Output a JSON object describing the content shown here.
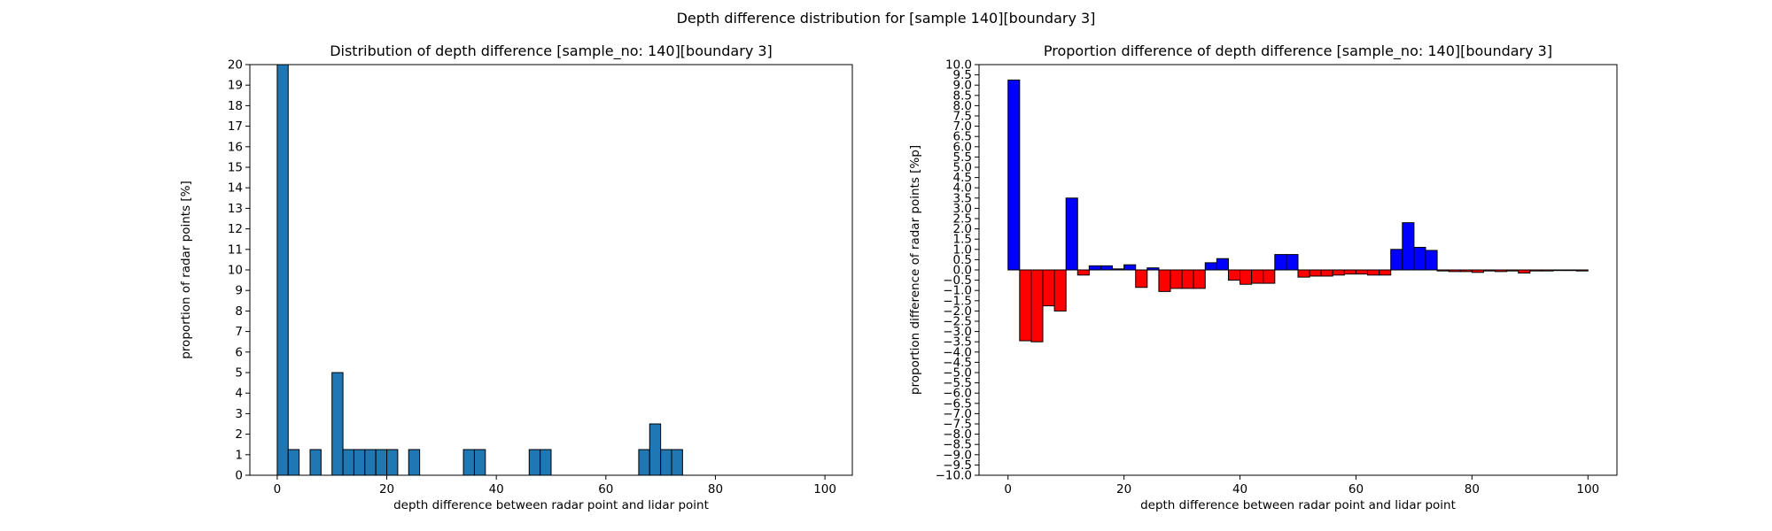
{
  "figure": {
    "suptitle": "Depth difference distribution for [sample 140][boundary 3]"
  },
  "chart_data": [
    {
      "type": "bar",
      "title": "Distribution of depth difference [sample_no: 140][boundary 3]",
      "xlabel": "depth difference between radar point and lidar point",
      "ylabel": "proportion of radar points [%]",
      "xlim": [
        -5,
        105
      ],
      "ylim": [
        0,
        20
      ],
      "xticks": [
        0,
        20,
        40,
        60,
        80,
        100
      ],
      "yticks": [
        0,
        1,
        2,
        3,
        4,
        5,
        6,
        7,
        8,
        9,
        10,
        11,
        12,
        13,
        14,
        15,
        16,
        17,
        18,
        19,
        20
      ],
      "bin_width": 2,
      "color": "#1f77b4",
      "bins": [
        {
          "x": 0,
          "value": 20.0
        },
        {
          "x": 2,
          "value": 1.25
        },
        {
          "x": 6,
          "value": 1.25
        },
        {
          "x": 10,
          "value": 5.0
        },
        {
          "x": 12,
          "value": 1.25
        },
        {
          "x": 14,
          "value": 1.25
        },
        {
          "x": 16,
          "value": 1.25
        },
        {
          "x": 18,
          "value": 1.25
        },
        {
          "x": 20,
          "value": 1.25
        },
        {
          "x": 24,
          "value": 1.25
        },
        {
          "x": 34,
          "value": 1.25
        },
        {
          "x": 36,
          "value": 1.25
        },
        {
          "x": 46,
          "value": 1.25
        },
        {
          "x": 48,
          "value": 1.25
        },
        {
          "x": 66,
          "value": 1.25
        },
        {
          "x": 68,
          "value": 2.5
        },
        {
          "x": 70,
          "value": 1.25
        },
        {
          "x": 72,
          "value": 1.25
        }
      ]
    },
    {
      "type": "bar",
      "title": "Proportion difference of depth difference [sample_no: 140][boundary 3]",
      "xlabel": "depth difference between radar point and lidar point",
      "ylabel": "proportion difference of radar points [%p]",
      "xlim": [
        -5,
        105
      ],
      "ylim": [
        -10,
        10
      ],
      "xticks": [
        0,
        20,
        40,
        60,
        80,
        100
      ],
      "yticks": [
        -10.0,
        -9.5,
        -9.0,
        -8.5,
        -8.0,
        -7.5,
        -7.0,
        -6.5,
        -6.0,
        -5.5,
        -5.0,
        -4.5,
        -4.0,
        -3.5,
        -3.0,
        -2.5,
        -2.0,
        -1.5,
        -1.0,
        -0.5,
        0.0,
        0.5,
        1.0,
        1.5,
        2.0,
        2.5,
        3.0,
        3.5,
        4.0,
        4.5,
        5.0,
        5.5,
        6.0,
        6.5,
        7.0,
        7.5,
        8.0,
        8.5,
        9.0,
        9.5,
        10.0
      ],
      "bin_width": 2,
      "positive_color": "#0000ff",
      "negative_color": "#ff0000",
      "bins": [
        {
          "x": 0,
          "value": 9.25
        },
        {
          "x": 2,
          "value": -3.45
        },
        {
          "x": 4,
          "value": -3.5
        },
        {
          "x": 6,
          "value": -1.75
        },
        {
          "x": 8,
          "value": -2.0
        },
        {
          "x": 10,
          "value": 3.5
        },
        {
          "x": 12,
          "value": -0.25
        },
        {
          "x": 14,
          "value": 0.2
        },
        {
          "x": 16,
          "value": 0.2
        },
        {
          "x": 18,
          "value": 0.05
        },
        {
          "x": 20,
          "value": 0.25
        },
        {
          "x": 22,
          "value": -0.85
        },
        {
          "x": 24,
          "value": 0.1
        },
        {
          "x": 26,
          "value": -1.05
        },
        {
          "x": 28,
          "value": -0.9
        },
        {
          "x": 30,
          "value": -0.9
        },
        {
          "x": 32,
          "value": -0.9
        },
        {
          "x": 34,
          "value": 0.35
        },
        {
          "x": 36,
          "value": 0.55
        },
        {
          "x": 38,
          "value": -0.5
        },
        {
          "x": 40,
          "value": -0.7
        },
        {
          "x": 42,
          "value": -0.65
        },
        {
          "x": 44,
          "value": -0.65
        },
        {
          "x": 46,
          "value": 0.75
        },
        {
          "x": 48,
          "value": 0.75
        },
        {
          "x": 50,
          "value": -0.35
        },
        {
          "x": 52,
          "value": -0.3
        },
        {
          "x": 54,
          "value": -0.3
        },
        {
          "x": 56,
          "value": -0.25
        },
        {
          "x": 58,
          "value": -0.2
        },
        {
          "x": 60,
          "value": -0.2
        },
        {
          "x": 62,
          "value": -0.25
        },
        {
          "x": 64,
          "value": -0.25
        },
        {
          "x": 66,
          "value": 1.0
        },
        {
          "x": 68,
          "value": 2.3
        },
        {
          "x": 70,
          "value": 1.1
        },
        {
          "x": 72,
          "value": 0.95
        },
        {
          "x": 74,
          "value": -0.05
        },
        {
          "x": 76,
          "value": -0.08
        },
        {
          "x": 78,
          "value": -0.08
        },
        {
          "x": 80,
          "value": -0.12
        },
        {
          "x": 82,
          "value": -0.05
        },
        {
          "x": 84,
          "value": -0.08
        },
        {
          "x": 86,
          "value": -0.05
        },
        {
          "x": 88,
          "value": -0.15
        },
        {
          "x": 90,
          "value": -0.05
        },
        {
          "x": 92,
          "value": -0.05
        },
        {
          "x": 94,
          "value": -0.03
        },
        {
          "x": 96,
          "value": -0.03
        },
        {
          "x": 98,
          "value": -0.05
        }
      ]
    }
  ]
}
